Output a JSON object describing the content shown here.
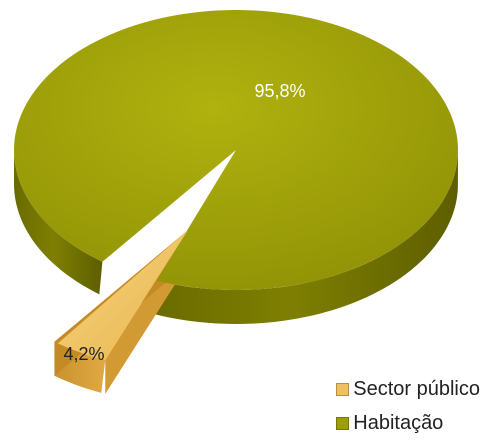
{
  "chart_data": {
    "type": "pie",
    "title": "",
    "slices": [
      {
        "label": "Habitação",
        "value": 95.8,
        "value_label": "95,8%",
        "color": "#9e9f08"
      },
      {
        "label": "Sector público",
        "value": 4.2,
        "value_label": "4,2%",
        "color": "#f0c060"
      }
    ],
    "legend": {
      "position": "bottom-right",
      "order": [
        "Sector público",
        "Habitação"
      ]
    },
    "style": "3d-exploded"
  }
}
